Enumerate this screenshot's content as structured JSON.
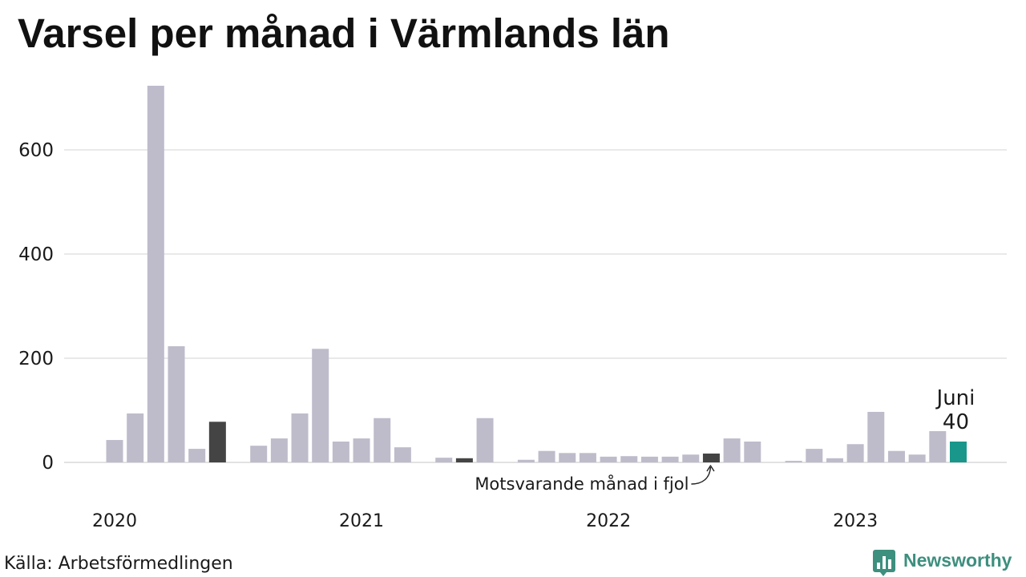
{
  "source": "Källa: Arbetsförmedlingen",
  "brand": {
    "name": "Newsworthy",
    "icon": "newsworthy-logo-icon",
    "color": "#3d8f7e"
  },
  "chart_data": {
    "type": "bar",
    "title": "Varsel per månad i Värmlands län",
    "x": [
      "2020-01",
      "2020-02",
      "2020-03",
      "2020-04",
      "2020-05",
      "2020-06",
      "2020-07",
      "2020-08",
      "2020-09",
      "2020-10",
      "2020-11",
      "2020-12",
      "2021-01",
      "2021-02",
      "2021-03",
      "2021-04",
      "2021-05",
      "2021-06",
      "2021-07",
      "2021-08",
      "2021-09",
      "2021-10",
      "2021-11",
      "2021-12",
      "2022-01",
      "2022-02",
      "2022-03",
      "2022-04",
      "2022-05",
      "2022-06",
      "2022-07",
      "2022-08",
      "2022-09",
      "2022-10",
      "2022-11",
      "2022-12",
      "2023-01",
      "2023-02",
      "2023-03",
      "2023-04",
      "2023-05",
      "2023-06"
    ],
    "values": [
      43,
      94,
      723,
      223,
      26,
      78,
      0,
      32,
      46,
      94,
      218,
      40,
      46,
      85,
      29,
      0,
      9,
      8,
      85,
      0,
      5,
      22,
      18,
      18,
      11,
      12,
      11,
      11,
      15,
      17,
      46,
      40,
      0,
      3,
      26,
      8,
      35,
      97,
      22,
      15,
      60,
      40
    ],
    "x_tick_labels": [
      "2020",
      "2021",
      "2022",
      "2023"
    ],
    "y_ticks": [
      0,
      200,
      400,
      600
    ],
    "ylim": [
      0,
      723
    ],
    "grid": true,
    "current": {
      "x": "2023-06",
      "month_label": "Juni",
      "value_label": "40"
    },
    "comparison": {
      "x": [
        "2020-06",
        "2021-06",
        "2022-06"
      ],
      "note": "Motsvarande månad i fjol"
    },
    "colors": {
      "bar": "#bebccb",
      "comparison": "#444444",
      "current": "#18978a",
      "grid": "#e2e2e2"
    }
  }
}
